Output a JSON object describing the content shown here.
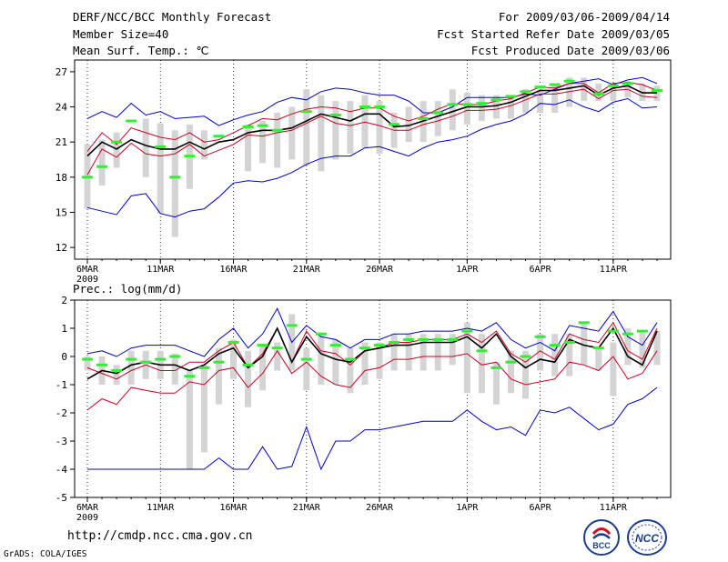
{
  "header": {
    "title": "DERF/NCC/BCC Monthly Forecast",
    "member_size": "Member Size=40",
    "variable": "Mean Surf. Temp.: ℃",
    "for_range": "For 2009/03/06-2009/04/14",
    "started": "Fcst Started Refer Date 2009/03/05",
    "produced": "Fcst Produced Date 2009/03/06"
  },
  "footer": {
    "url": "http://cmdp.ncc.cma.gov.cn",
    "grads": "GrADS: COLA/IGES",
    "logo_left_text": "BCC",
    "logo_right_text": "NCC"
  },
  "colors": {
    "envelope": "#0000cc",
    "spread": "#cc0022",
    "mean": "#000000",
    "observed": "#33ee33",
    "box": "#d4d4d4"
  },
  "chart_data": [
    {
      "name": "temperature",
      "type": "line",
      "title": "Mean Surf. Temp.: ℃",
      "xlabel": "",
      "ylabel": "℃",
      "ylim": [
        11,
        28
      ],
      "yticks": [
        12,
        15,
        18,
        21,
        24,
        27
      ],
      "x_tick_labels": [
        "6MAR",
        "11MAR",
        "16MAR",
        "21MAR",
        "26MAR",
        "1APR",
        "6APR",
        "11APR"
      ],
      "x_tick_positions": [
        0,
        5,
        10,
        15,
        20,
        26,
        31,
        36
      ],
      "x_sublabel": "2009",
      "days": 40,
      "series": [
        {
          "name": "max",
          "color": "#0000cc",
          "values": [
            23.0,
            23.6,
            23.1,
            24.3,
            23.3,
            23.6,
            23.0,
            23.1,
            23.2,
            22.4,
            22.9,
            23.3,
            23.6,
            24.4,
            24.8,
            24.6,
            25.3,
            25.6,
            25.5,
            25.2,
            25.0,
            25.0,
            24.5,
            23.5,
            23.5,
            24.0,
            24.8,
            24.8,
            24.8,
            24.8,
            25.1,
            25.0,
            25.5,
            26.0,
            26.2,
            26.4,
            25.9,
            26.3,
            26.5,
            26.0
          ]
        },
        {
          "name": "spread_upper",
          "color": "#cc0022",
          "values": [
            20.2,
            21.8,
            20.8,
            22.2,
            21.8,
            21.4,
            21.2,
            21.8,
            21.0,
            21.2,
            21.8,
            22.4,
            23.0,
            22.9,
            23.4,
            23.8,
            24.0,
            23.9,
            23.6,
            23.9,
            23.9,
            23.2,
            22.8,
            23.2,
            23.8,
            24.3,
            24.2,
            24.2,
            24.5,
            24.7,
            25.2,
            25.7,
            25.6,
            26.0,
            26.0,
            25.2,
            26.0,
            26.1,
            25.9,
            25.4
          ]
        },
        {
          "name": "mean",
          "color": "#000000",
          "values": [
            19.8,
            21.0,
            20.4,
            21.2,
            20.7,
            20.4,
            20.4,
            21.0,
            20.4,
            21.0,
            21.2,
            21.8,
            22.0,
            22.0,
            22.2,
            22.8,
            23.4,
            23.1,
            22.8,
            23.4,
            23.4,
            22.3,
            22.4,
            22.8,
            23.2,
            23.6,
            24.0,
            24.0,
            24.1,
            24.4,
            24.9,
            25.4,
            25.4,
            25.6,
            25.8,
            25.0,
            25.6,
            25.8,
            25.2,
            25.2
          ]
        },
        {
          "name": "spread_lower",
          "color": "#cc0022",
          "values": [
            18.2,
            20.4,
            19.7,
            20.9,
            20.0,
            19.8,
            20.0,
            20.8,
            19.8,
            20.3,
            20.8,
            21.6,
            21.5,
            21.8,
            22.0,
            22.6,
            23.2,
            22.6,
            22.4,
            22.7,
            22.4,
            22.0,
            22.0,
            22.5,
            22.8,
            23.2,
            23.7,
            23.7,
            23.8,
            24.1,
            24.6,
            25.1,
            25.1,
            25.3,
            25.5,
            24.7,
            25.4,
            25.5,
            24.9,
            24.8
          ]
        },
        {
          "name": "min",
          "color": "#0000cc",
          "values": [
            15.4,
            15.1,
            14.8,
            16.4,
            16.6,
            14.9,
            14.6,
            15.1,
            15.3,
            16.3,
            17.5,
            17.7,
            17.6,
            17.9,
            18.4,
            19.1,
            19.6,
            19.8,
            19.8,
            20.5,
            20.6,
            20.2,
            19.8,
            20.5,
            21.0,
            21.2,
            21.5,
            22.1,
            22.5,
            22.8,
            23.4,
            24.3,
            24.2,
            24.6,
            24.0,
            23.6,
            24.4,
            24.7,
            23.9,
            24.0
          ]
        },
        {
          "name": "observed",
          "color": "#33ee33",
          "values": [
            18.0,
            18.9,
            21.0,
            22.8,
            null,
            20.6,
            18.0,
            19.8,
            null,
            21.5,
            null,
            22.3,
            22.4,
            22.0,
            null,
            23.6,
            null,
            23.3,
            null,
            24.0,
            24.0,
            22.5,
            null,
            23.0,
            23.5,
            24.2,
            24.2,
            24.3,
            24.6,
            24.9,
            25.3,
            25.7,
            25.9,
            26.2,
            null,
            25.1,
            25.8,
            26.0,
            null,
            25.4
          ]
        }
      ],
      "boxes": [
        {
          "day": 0,
          "low": 15.3,
          "high": 20.8
        },
        {
          "day": 1,
          "low": 17.3,
          "high": 21.2
        },
        {
          "day": 2,
          "low": 18.8,
          "high": 21.8
        },
        {
          "day": 4,
          "low": 18.0,
          "high": 23.0
        },
        {
          "day": 5,
          "low": 14.9,
          "high": 22.6
        },
        {
          "day": 6,
          "low": 12.9,
          "high": 22.0
        },
        {
          "day": 7,
          "low": 17.0,
          "high": 22.5
        },
        {
          "day": 8,
          "low": 19.5,
          "high": 22.0
        },
        {
          "day": 11,
          "low": 18.5,
          "high": 22.5
        },
        {
          "day": 12,
          "low": 19.2,
          "high": 22.8
        },
        {
          "day": 13,
          "low": 18.8,
          "high": 23.5
        },
        {
          "day": 14,
          "low": 19.5,
          "high": 24.0
        },
        {
          "day": 15,
          "low": 19.0,
          "high": 25.5
        },
        {
          "day": 16,
          "low": 18.5,
          "high": 25.0
        },
        {
          "day": 17,
          "low": 19.5,
          "high": 24.5
        },
        {
          "day": 18,
          "low": 20.0,
          "high": 24.5
        },
        {
          "day": 19,
          "low": 20.5,
          "high": 25.0
        },
        {
          "day": 20,
          "low": 20.0,
          "high": 24.5
        },
        {
          "day": 21,
          "low": 20.5,
          "high": 23.5
        },
        {
          "day": 22,
          "low": 21.0,
          "high": 24.0
        },
        {
          "day": 23,
          "low": 21.0,
          "high": 24.5
        },
        {
          "day": 24,
          "low": 21.5,
          "high": 24.5
        },
        {
          "day": 25,
          "low": 22.0,
          "high": 25.5
        },
        {
          "day": 26,
          "low": 22.5,
          "high": 25.2
        },
        {
          "day": 27,
          "low": 22.8,
          "high": 25.0
        },
        {
          "day": 28,
          "low": 23.0,
          "high": 25.0
        },
        {
          "day": 29,
          "low": 23.0,
          "high": 25.0
        },
        {
          "day": 30,
          "low": 23.5,
          "high": 25.5
        },
        {
          "day": 31,
          "low": 23.5,
          "high": 25.5
        },
        {
          "day": 32,
          "low": 23.5,
          "high": 26.0
        },
        {
          "day": 33,
          "low": 24.0,
          "high": 26.5
        },
        {
          "day": 34,
          "low": 24.5,
          "high": 26.5
        },
        {
          "day": 35,
          "low": 24.5,
          "high": 26.0
        },
        {
          "day": 36,
          "low": 24.5,
          "high": 26.0
        },
        {
          "day": 37,
          "low": 24.8,
          "high": 26.2
        },
        {
          "day": 38,
          "low": 24.5,
          "high": 26.0
        },
        {
          "day": 39,
          "low": 24.5,
          "high": 25.8
        }
      ]
    },
    {
      "name": "precipitation",
      "type": "line",
      "title": "Prec.: log(mm/d)",
      "xlabel": "",
      "ylabel": "log(mm/d)",
      "ylim": [
        -5,
        2
      ],
      "yticks": [
        -5,
        -4,
        -3,
        -2,
        -1,
        0,
        1,
        2
      ],
      "x_tick_labels": [
        "6MAR",
        "11MAR",
        "16MAR",
        "21MAR",
        "26MAR",
        "1APR",
        "6APR",
        "11APR"
      ],
      "x_tick_positions": [
        0,
        5,
        10,
        15,
        20,
        26,
        31,
        36
      ],
      "x_sublabel": "2009",
      "days": 40,
      "series": [
        {
          "name": "max",
          "color": "#0000cc",
          "values": [
            0.1,
            0.2,
            0.0,
            0.3,
            0.4,
            0.4,
            0.4,
            0.2,
            0.0,
            0.6,
            1.0,
            0.3,
            0.8,
            1.7,
            0.5,
            1.1,
            0.7,
            0.6,
            0.3,
            0.6,
            0.6,
            0.8,
            0.8,
            0.9,
            0.9,
            0.9,
            1.0,
            0.9,
            1.2,
            0.6,
            0.3,
            0.5,
            0.2,
            1.1,
            1.0,
            0.9,
            1.6,
            0.7,
            0.4,
            1.2
          ]
        },
        {
          "name": "spread_upper",
          "color": "#cc0022",
          "values": [
            -0.4,
            -0.6,
            -0.8,
            -0.5,
            -0.3,
            -0.5,
            -0.5,
            -0.2,
            -0.2,
            0.2,
            0.5,
            -0.4,
            0.1,
            1.0,
            -0.2,
            0.9,
            0.2,
            0.1,
            -0.3,
            0.2,
            0.3,
            0.5,
            0.5,
            0.6,
            0.6,
            0.6,
            0.8,
            0.5,
            0.9,
            0.1,
            -0.2,
            0.2,
            -0.1,
            0.8,
            0.6,
            0.5,
            1.2,
            0.2,
            -0.1,
            1.0
          ]
        },
        {
          "name": "mean",
          "color": "#000000",
          "values": [
            -0.8,
            -0.5,
            -0.6,
            -0.3,
            -0.2,
            -0.3,
            -0.3,
            -0.5,
            -0.3,
            0.1,
            0.3,
            -0.4,
            0.0,
            1.0,
            -0.2,
            0.7,
            0.1,
            -0.1,
            -0.2,
            0.2,
            0.3,
            0.4,
            0.4,
            0.5,
            0.5,
            0.5,
            0.7,
            0.3,
            0.8,
            0.0,
            -0.4,
            -0.1,
            -0.2,
            0.6,
            0.4,
            0.3,
            1.0,
            0.0,
            -0.3,
            0.9
          ]
        },
        {
          "name": "spread_lower",
          "color": "#cc0022",
          "values": [
            -1.9,
            -1.5,
            -1.7,
            -1.1,
            -1.2,
            -1.3,
            -1.3,
            -0.9,
            -1.0,
            -0.5,
            -0.4,
            -1.1,
            -0.6,
            0.2,
            -0.6,
            -0.2,
            -0.7,
            -1.0,
            -1.1,
            -0.5,
            -0.4,
            -0.1,
            -0.1,
            0.0,
            0.0,
            0.0,
            0.1,
            -0.3,
            -0.2,
            -0.8,
            -1.0,
            -0.9,
            -0.8,
            -0.2,
            -0.3,
            -0.5,
            0.0,
            -0.8,
            -0.6,
            0.2
          ]
        },
        {
          "name": "min",
          "color": "#0000cc",
          "values": [
            -4.0,
            -4.0,
            -4.0,
            -4.0,
            -4.0,
            -4.0,
            -4.0,
            -4.0,
            -4.0,
            -3.6,
            -4.0,
            -4.0,
            -3.2,
            -4.0,
            -3.9,
            -2.5,
            -4.0,
            -3.0,
            -3.0,
            -2.6,
            -2.6,
            -2.5,
            -2.4,
            -2.3,
            -2.3,
            -2.3,
            -1.9,
            -2.3,
            -2.6,
            -2.5,
            -2.8,
            -1.9,
            -2.0,
            -1.8,
            -2.2,
            -2.6,
            -2.4,
            -1.7,
            -1.5,
            -1.1
          ]
        },
        {
          "name": "observed",
          "color": "#33ee33",
          "values": [
            -0.1,
            -0.3,
            -0.5,
            -0.1,
            -0.2,
            -0.1,
            0.0,
            -0.7,
            -0.4,
            -0.2,
            0.5,
            -0.3,
            0.4,
            0.3,
            1.1,
            -0.1,
            0.8,
            0.4,
            -0.1,
            0.3,
            0.4,
            0.5,
            0.6,
            0.6,
            0.6,
            0.6,
            0.9,
            0.2,
            -0.4,
            -0.2,
            0.0,
            0.7,
            0.4,
            0.5,
            1.2,
            0.3,
            0.9,
            0.8,
            0.9,
            null
          ]
        }
      ],
      "boxes": [
        {
          "day": 0,
          "low": -0.5,
          "high": 0.0
        },
        {
          "day": 1,
          "low": -1.0,
          "high": 0.0
        },
        {
          "day": 2,
          "low": -1.0,
          "high": -0.3
        },
        {
          "day": 3,
          "low": -1.0,
          "high": 0.2
        },
        {
          "day": 4,
          "low": -0.8,
          "high": 0.2
        },
        {
          "day": 5,
          "low": -0.8,
          "high": 0.2
        },
        {
          "day": 6,
          "low": -1.0,
          "high": 0.1
        },
        {
          "day": 7,
          "low": -4.0,
          "high": -0.5
        },
        {
          "day": 8,
          "low": -3.4,
          "high": -0.3
        },
        {
          "day": 9,
          "low": -1.7,
          "high": 0.3
        },
        {
          "day": 10,
          "low": -0.8,
          "high": 0.6
        },
        {
          "day": 11,
          "low": -1.8,
          "high": 0.2
        },
        {
          "day": 12,
          "low": -1.2,
          "high": 0.4
        },
        {
          "day": 13,
          "low": -0.5,
          "high": 0.5
        },
        {
          "day": 14,
          "low": -0.5,
          "high": 1.5
        },
        {
          "day": 15,
          "low": -1.2,
          "high": 0.3
        },
        {
          "day": 16,
          "low": -1.0,
          "high": 0.8
        },
        {
          "day": 17,
          "low": -1.0,
          "high": 0.6
        },
        {
          "day": 18,
          "low": -1.3,
          "high": 0.3
        },
        {
          "day": 19,
          "low": -1.0,
          "high": 0.5
        },
        {
          "day": 20,
          "low": -0.8,
          "high": 0.5
        },
        {
          "day": 21,
          "low": -0.5,
          "high": 0.8
        },
        {
          "day": 22,
          "low": -0.5,
          "high": 0.8
        },
        {
          "day": 23,
          "low": -0.5,
          "high": 0.8
        },
        {
          "day": 24,
          "low": -0.5,
          "high": 0.8
        },
        {
          "day": 25,
          "low": -0.3,
          "high": 0.8
        },
        {
          "day": 26,
          "low": -1.3,
          "high": 1.2
        },
        {
          "day": 27,
          "low": -1.3,
          "high": 0.8
        },
        {
          "day": 28,
          "low": -1.7,
          "high": -0.2
        },
        {
          "day": 29,
          "low": -1.3,
          "high": 0.2
        },
        {
          "day": 30,
          "low": -1.5,
          "high": 0.2
        },
        {
          "day": 31,
          "low": -0.5,
          "high": 0.8
        },
        {
          "day": 32,
          "low": -0.7,
          "high": 0.8
        },
        {
          "day": 33,
          "low": -0.7,
          "high": 0.8
        },
        {
          "day": 34,
          "low": -0.3,
          "high": 1.2
        },
        {
          "day": 35,
          "low": -0.5,
          "high": 0.3
        },
        {
          "day": 36,
          "low": -1.4,
          "high": 0.5
        },
        {
          "day": 37,
          "low": -0.3,
          "high": 1.0
        },
        {
          "day": 38,
          "low": -0.4,
          "high": 0.9
        },
        {
          "day": 39,
          "low": -0.3,
          "high": 0.9
        }
      ]
    }
  ]
}
